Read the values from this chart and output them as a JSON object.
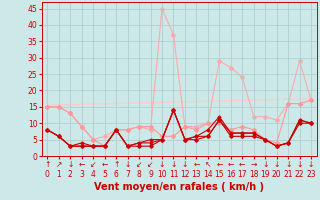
{
  "background_color": "#cce8e8",
  "grid_color": "#aacccc",
  "xlabel": "Vent moyen/en rafales ( km/h )",
  "xlabel_color": "#cc0000",
  "xlabel_fontsize": 7,
  "tick_color": "#cc0000",
  "tick_fontsize": 5.5,
  "ylim": [
    0,
    47
  ],
  "xlim": [
    -0.5,
    23.5
  ],
  "yticks": [
    0,
    5,
    10,
    15,
    20,
    25,
    30,
    35,
    40,
    45
  ],
  "xticks": [
    0,
    1,
    2,
    3,
    4,
    5,
    6,
    7,
    8,
    9,
    10,
    11,
    12,
    13,
    14,
    15,
    16,
    17,
    18,
    19,
    20,
    21,
    22,
    23
  ],
  "series": [
    {
      "x": [
        0,
        1,
        2,
        3,
        4,
        5,
        6,
        7,
        8,
        9,
        10,
        11,
        12,
        13,
        14,
        15,
        16,
        17,
        18,
        19,
        20,
        21,
        22,
        23
      ],
      "y": [
        8,
        6,
        3,
        3,
        3,
        3,
        8,
        3,
        3,
        3,
        5,
        14,
        5,
        5,
        6,
        11,
        6,
        6,
        6,
        5,
        3,
        4,
        10,
        10
      ],
      "color": "#cc0000",
      "linewidth": 0.8,
      "marker": "D",
      "markersize": 1.8,
      "zorder": 5
    },
    {
      "x": [
        0,
        1,
        2,
        3,
        4,
        5,
        6,
        7,
        8,
        9,
        10,
        11,
        12,
        13,
        14,
        15,
        16,
        17,
        18,
        19,
        20,
        21,
        22,
        23
      ],
      "y": [
        8,
        6,
        3,
        3,
        3,
        3,
        8,
        3,
        4,
        4,
        5,
        14,
        5,
        6,
        6,
        11,
        7,
        7,
        7,
        5,
        3,
        4,
        11,
        10
      ],
      "color": "#cc0000",
      "linewidth": 0.8,
      "marker": "s",
      "markersize": 1.5,
      "zorder": 4
    },
    {
      "x": [
        0,
        1,
        2,
        3,
        4,
        5,
        6,
        7,
        8,
        9,
        10,
        11,
        12,
        13,
        14,
        15,
        16,
        17,
        18,
        19,
        20,
        21,
        22,
        23
      ],
      "y": [
        8,
        6,
        3,
        4,
        3,
        3,
        8,
        3,
        4,
        5,
        5,
        14,
        5,
        6,
        8,
        12,
        7,
        7,
        7,
        5,
        3,
        4,
        11,
        10
      ],
      "color": "#cc0000",
      "linewidth": 0.8,
      "marker": "D",
      "markersize": 1.5,
      "zorder": 3
    },
    {
      "x": [
        0,
        1,
        2,
        3,
        4,
        5,
        6,
        7,
        8,
        9,
        10,
        11,
        12,
        13,
        14,
        15,
        16,
        17,
        18,
        19,
        20,
        21,
        22,
        23
      ],
      "y": [
        15,
        15,
        13,
        9,
        5,
        3,
        8,
        8,
        9,
        9,
        6,
        6,
        9,
        8,
        10,
        10,
        8,
        9,
        8,
        5,
        4,
        16,
        16,
        17
      ],
      "color": "#ff9999",
      "linewidth": 0.8,
      "marker": "D",
      "markersize": 2.0,
      "zorder": 2
    },
    {
      "x": [
        0,
        1,
        2,
        3,
        4,
        5,
        6,
        7,
        8,
        9,
        10,
        11,
        12,
        13,
        14,
        15,
        16,
        17,
        18,
        19,
        20,
        21,
        22,
        23
      ],
      "y": [
        15,
        15,
        13,
        9,
        5,
        6,
        8,
        8,
        9,
        8,
        45,
        37,
        9,
        9,
        10,
        29,
        27,
        24,
        12,
        12,
        11,
        16,
        29,
        17
      ],
      "color": "#ffaaaa",
      "linewidth": 0.8,
      "marker": "D",
      "markersize": 2.0,
      "zorder": 1
    },
    {
      "x": [
        0,
        23
      ],
      "y": [
        15.5,
        17.5
      ],
      "color": "#ffcccc",
      "linewidth": 1.0,
      "marker": null,
      "markersize": 0,
      "zorder": 0,
      "linestyle": "-"
    }
  ],
  "arrow_symbols": [
    "↑",
    "↗",
    "↓",
    "←",
    "↙",
    "←",
    "↑",
    "↓",
    "↙",
    "↙",
    "↓",
    "↓",
    "↓",
    "←",
    "↖",
    "←",
    "←",
    "←",
    "→",
    "↓",
    "↓",
    "↓",
    "↓",
    "↓"
  ]
}
